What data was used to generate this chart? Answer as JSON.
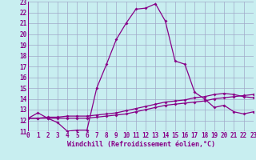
{
  "xlabel": "Windchill (Refroidissement éolien,°C)",
  "background_color": "#c8eef0",
  "grid_color": "#a0a8c8",
  "line_color": "#880088",
  "xlim": [
    0,
    23
  ],
  "ylim": [
    11,
    23
  ],
  "yticks": [
    11,
    12,
    13,
    14,
    15,
    16,
    17,
    18,
    19,
    20,
    21,
    22,
    23
  ],
  "xticks": [
    0,
    1,
    2,
    3,
    4,
    5,
    6,
    7,
    8,
    9,
    10,
    11,
    12,
    13,
    14,
    15,
    16,
    17,
    18,
    19,
    20,
    21,
    22,
    23
  ],
  "line1_x": [
    0,
    1,
    2,
    3,
    4,
    5,
    6,
    7,
    8,
    9,
    10,
    11,
    12,
    13,
    14,
    15,
    16,
    17,
    18,
    19,
    20,
    21,
    22,
    23
  ],
  "line1_y": [
    12.2,
    12.7,
    12.2,
    11.8,
    11.0,
    11.1,
    11.1,
    15.0,
    17.2,
    19.5,
    21.0,
    22.3,
    22.4,
    22.8,
    21.2,
    17.5,
    17.2,
    14.6,
    14.0,
    13.2,
    13.4,
    12.8,
    12.6,
    12.8
  ],
  "line2_x": [
    0,
    1,
    2,
    3,
    4,
    5,
    6,
    7,
    8,
    9,
    10,
    11,
    12,
    13,
    14,
    15,
    16,
    17,
    18,
    19,
    20,
    21,
    22,
    23
  ],
  "line2_y": [
    12.2,
    12.2,
    12.2,
    12.2,
    12.2,
    12.2,
    12.2,
    12.3,
    12.4,
    12.5,
    12.6,
    12.8,
    13.0,
    13.2,
    13.4,
    13.5,
    13.6,
    13.7,
    13.8,
    14.0,
    14.1,
    14.2,
    14.3,
    14.4
  ],
  "line3_x": [
    0,
    1,
    2,
    3,
    4,
    5,
    6,
    7,
    8,
    9,
    10,
    11,
    12,
    13,
    14,
    15,
    16,
    17,
    18,
    19,
    20,
    21,
    22,
    23
  ],
  "line3_y": [
    12.2,
    12.2,
    12.3,
    12.3,
    12.4,
    12.4,
    12.4,
    12.5,
    12.6,
    12.7,
    12.9,
    13.1,
    13.3,
    13.5,
    13.7,
    13.8,
    13.9,
    14.1,
    14.2,
    14.4,
    14.5,
    14.4,
    14.2,
    14.1
  ],
  "tick_fontsize": 5.5,
  "xlabel_fontsize": 6.0
}
